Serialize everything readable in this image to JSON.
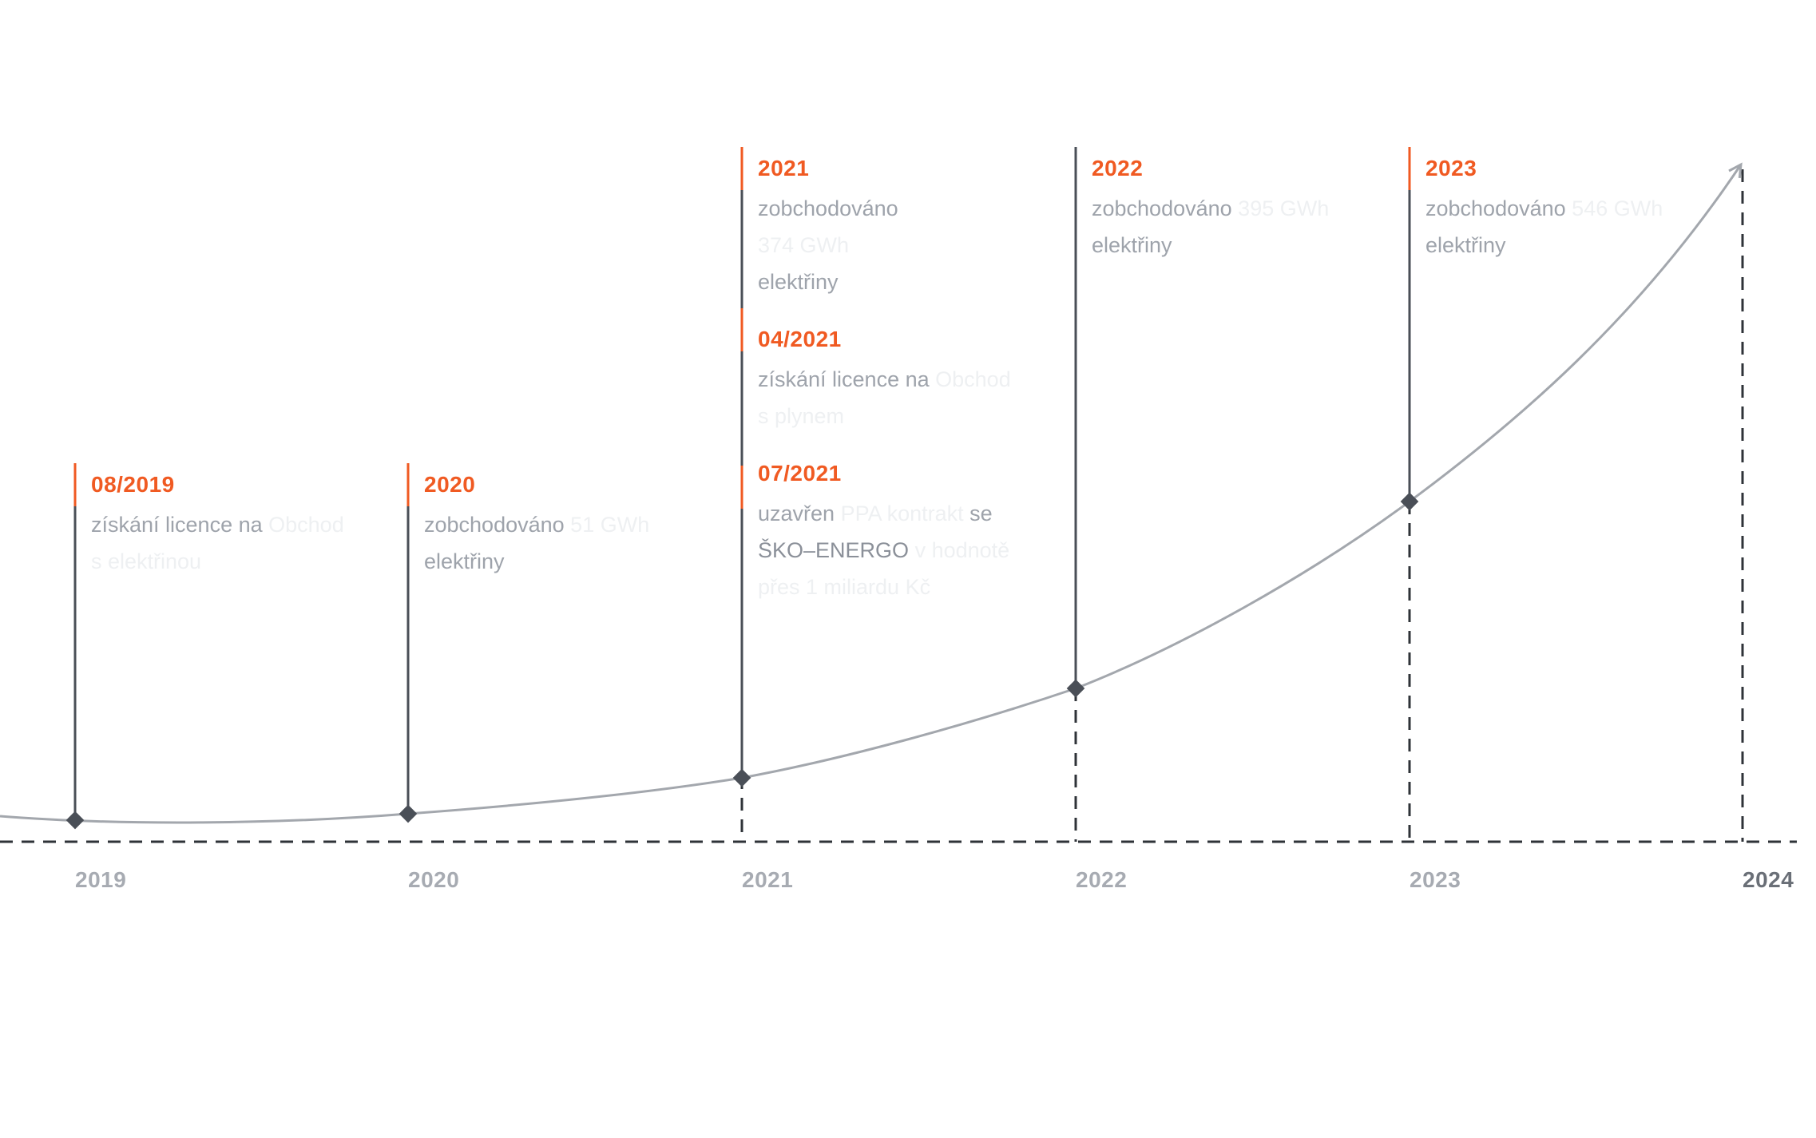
{
  "x_axis": {
    "years": [
      "2019",
      "2020",
      "2021",
      "2022",
      "2023",
      "2024"
    ]
  },
  "events": [
    {
      "title": "08/2019",
      "desc": [
        {
          "t": "získání licence na",
          "s": "normal"
        },
        {
          "t": "Obchod s elektřinou",
          "s": "light"
        }
      ]
    },
    {
      "title": "2020",
      "desc": [
        {
          "t": "zobchodováno",
          "s": "normal"
        },
        {
          "t": "51 GWh",
          "s": "light"
        },
        {
          "t": "elektřiny",
          "s": "normal"
        }
      ]
    },
    {
      "title": "2021",
      "desc": [
        {
          "t": "zobchodováno",
          "s": "normal"
        },
        {
          "t": "374 GWh",
          "s": "light"
        },
        {
          "t": "elektřiny",
          "s": "normal"
        }
      ]
    },
    {
      "title": "04/2021",
      "desc": [
        {
          "t": "získání licence na",
          "s": "normal"
        },
        {
          "t": "Obchod s plynem",
          "s": "light"
        }
      ]
    },
    {
      "title": "07/2021",
      "desc": [
        {
          "t": "uzavřen",
          "s": "normal"
        },
        {
          "t": "PPA kontrakt",
          "s": "light"
        },
        {
          "t": "se",
          "s": "normal"
        },
        {
          "t": "ŠKO–ENERGO",
          "s": "dark"
        },
        {
          "t": "v hodnotě přes 1 miliardu Kč",
          "s": "light"
        }
      ]
    },
    {
      "title": "2022",
      "desc": [
        {
          "t": "zobchodováno",
          "s": "normal"
        },
        {
          "t": "395 GWh",
          "s": "light"
        },
        {
          "t": "elektřiny",
          "s": "normal"
        }
      ]
    },
    {
      "title": "2023",
      "desc": [
        {
          "t": "zobchodováno",
          "s": "normal"
        },
        {
          "t": "546 GWh",
          "s": "light"
        },
        {
          "t": "elektřiny",
          "s": "normal"
        }
      ]
    }
  ],
  "colors": {
    "accent": "#f05a22",
    "stem": "#4a4f57",
    "curve": "#a3a7ad",
    "axis": "#2f3338",
    "text": "#9ea3ab"
  }
}
